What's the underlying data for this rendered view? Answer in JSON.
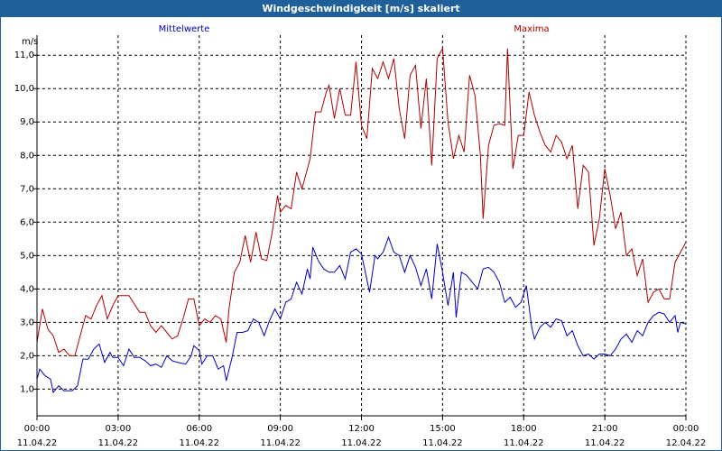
{
  "window": {
    "title": "Windgeschwindigkeit [m/s] skaliert"
  },
  "colors": {
    "title_bar": "#1f5f9a",
    "mean": "#0000c0",
    "max": "#b00000",
    "grid": "#000000"
  },
  "chart_data": {
    "type": "line",
    "title": "Windgeschwindigkeit [m/s] skaliert",
    "ylabel": "m/s",
    "xlabel": "",
    "ylim": [
      0.2,
      11.6
    ],
    "yticks": [
      {
        "v": 1.0,
        "label": "1,0"
      },
      {
        "v": 2.0,
        "label": "2,0"
      },
      {
        "v": 3.0,
        "label": "3,0"
      },
      {
        "v": 4.0,
        "label": "4,0"
      },
      {
        "v": 5.0,
        "label": "5,0"
      },
      {
        "v": 6.0,
        "label": "6,0"
      },
      {
        "v": 7.0,
        "label": "7,0"
      },
      {
        "v": 8.0,
        "label": "8,0"
      },
      {
        "v": 9.0,
        "label": "9,0"
      },
      {
        "v": 10.0,
        "label": "10,0"
      },
      {
        "v": 11.0,
        "label": "11,0"
      }
    ],
    "xlim": [
      0,
      24
    ],
    "xticks": [
      {
        "h": 0,
        "time": "00:00",
        "date": "11.04.22"
      },
      {
        "h": 3,
        "time": "03:00",
        "date": "11.04.22"
      },
      {
        "h": 6,
        "time": "06:00",
        "date": "11.04.22"
      },
      {
        "h": 9,
        "time": "09:00",
        "date": "11.04.22"
      },
      {
        "h": 12,
        "time": "12:00",
        "date": "11.04.22"
      },
      {
        "h": 15,
        "time": "15:00",
        "date": "11.04.22"
      },
      {
        "h": 18,
        "time": "18:00",
        "date": "11.04.22"
      },
      {
        "h": 21,
        "time": "21:00",
        "date": "11.04.22"
      },
      {
        "h": 24,
        "time": "00:00",
        "date": "12.04.22"
      }
    ],
    "grid": true,
    "legend": "top",
    "series": [
      {
        "name": "Mittelwerte",
        "color": "#0000c0",
        "points": [
          [
            0,
            1.3
          ],
          [
            0.1,
            1.6
          ],
          [
            0.3,
            1.4
          ],
          [
            0.5,
            1.3
          ],
          [
            0.6,
            0.9
          ],
          [
            0.8,
            1.1
          ],
          [
            1.0,
            0.95
          ],
          [
            1.3,
            0.95
          ],
          [
            1.5,
            1.1
          ],
          [
            1.7,
            1.9
          ],
          [
            1.9,
            1.9
          ],
          [
            2.1,
            2.2
          ],
          [
            2.3,
            2.35
          ],
          [
            2.5,
            1.8
          ],
          [
            2.7,
            2.1
          ],
          [
            2.8,
            1.95
          ],
          [
            3.0,
            1.95
          ],
          [
            3.2,
            1.7
          ],
          [
            3.4,
            2.2
          ],
          [
            3.6,
            1.95
          ],
          [
            3.8,
            1.95
          ],
          [
            4.0,
            1.85
          ],
          [
            4.2,
            1.7
          ],
          [
            4.4,
            1.75
          ],
          [
            4.6,
            1.65
          ],
          [
            4.8,
            2.0
          ],
          [
            5.0,
            1.85
          ],
          [
            5.2,
            1.8
          ],
          [
            5.5,
            1.75
          ],
          [
            5.7,
            2.0
          ],
          [
            5.8,
            2.3
          ],
          [
            6.0,
            2.15
          ],
          [
            6.1,
            1.75
          ],
          [
            6.3,
            2.0
          ],
          [
            6.5,
            2.0
          ],
          [
            6.7,
            1.6
          ],
          [
            6.9,
            1.7
          ],
          [
            7.0,
            1.25
          ],
          [
            7.2,
            1.9
          ],
          [
            7.4,
            2.7
          ],
          [
            7.6,
            2.7
          ],
          [
            7.8,
            2.75
          ],
          [
            8.0,
            3.1
          ],
          [
            8.2,
            3.0
          ],
          [
            8.4,
            2.6
          ],
          [
            8.6,
            3.05
          ],
          [
            8.8,
            3.4
          ],
          [
            9.0,
            3.1
          ],
          [
            9.2,
            3.6
          ],
          [
            9.4,
            3.7
          ],
          [
            9.6,
            4.2
          ],
          [
            9.8,
            3.85
          ],
          [
            10.0,
            4.6
          ],
          [
            10.1,
            4.3
          ],
          [
            10.2,
            5.25
          ],
          [
            10.4,
            4.85
          ],
          [
            10.6,
            4.6
          ],
          [
            10.8,
            4.5
          ],
          [
            11.0,
            4.5
          ],
          [
            11.2,
            4.7
          ],
          [
            11.4,
            4.3
          ],
          [
            11.6,
            5.1
          ],
          [
            11.8,
            5.2
          ],
          [
            12.0,
            5.05
          ],
          [
            12.3,
            3.9
          ],
          [
            12.5,
            5.0
          ],
          [
            12.6,
            4.9
          ],
          [
            12.8,
            5.1
          ],
          [
            13.0,
            5.55
          ],
          [
            13.2,
            5.1
          ],
          [
            13.4,
            5.0
          ],
          [
            13.6,
            4.5
          ],
          [
            13.8,
            5.0
          ],
          [
            14.0,
            4.65
          ],
          [
            14.2,
            4.1
          ],
          [
            14.4,
            4.6
          ],
          [
            14.6,
            3.7
          ],
          [
            14.8,
            5.35
          ],
          [
            15.0,
            4.5
          ],
          [
            15.2,
            3.5
          ],
          [
            15.4,
            4.5
          ],
          [
            15.5,
            3.15
          ],
          [
            15.7,
            4.5
          ],
          [
            15.9,
            4.4
          ],
          [
            16.1,
            4.2
          ],
          [
            16.3,
            4.0
          ],
          [
            16.5,
            4.6
          ],
          [
            16.7,
            4.65
          ],
          [
            16.9,
            4.5
          ],
          [
            17.1,
            4.2
          ],
          [
            17.3,
            3.6
          ],
          [
            17.5,
            3.75
          ],
          [
            17.7,
            3.45
          ],
          [
            17.9,
            3.6
          ],
          [
            18.1,
            4.1
          ],
          [
            18.3,
            2.85
          ],
          [
            18.4,
            2.5
          ],
          [
            18.6,
            2.85
          ],
          [
            18.8,
            3.0
          ],
          [
            19.0,
            2.85
          ],
          [
            19.2,
            3.1
          ],
          [
            19.4,
            3.05
          ],
          [
            19.6,
            2.6
          ],
          [
            19.8,
            2.75
          ],
          [
            20.0,
            2.3
          ],
          [
            20.2,
            2.0
          ],
          [
            20.4,
            2.05
          ],
          [
            20.6,
            1.9
          ],
          [
            20.8,
            2.05
          ],
          [
            21.0,
            2.05
          ],
          [
            21.2,
            2.0
          ],
          [
            21.4,
            2.2
          ],
          [
            21.6,
            2.5
          ],
          [
            21.8,
            2.65
          ],
          [
            22.0,
            2.4
          ],
          [
            22.2,
            2.75
          ],
          [
            22.4,
            2.6
          ],
          [
            22.6,
            3.0
          ],
          [
            22.8,
            3.2
          ],
          [
            23.0,
            3.3
          ],
          [
            23.2,
            3.25
          ],
          [
            23.4,
            3.0
          ],
          [
            23.6,
            3.2
          ],
          [
            23.7,
            2.7
          ],
          [
            23.8,
            3.0
          ],
          [
            24.0,
            2.95
          ]
        ]
      },
      {
        "name": "Maxima",
        "color": "#b00000",
        "points": [
          [
            0,
            2.4
          ],
          [
            0.2,
            3.4
          ],
          [
            0.4,
            2.8
          ],
          [
            0.6,
            2.6
          ],
          [
            0.8,
            2.1
          ],
          [
            1.0,
            2.2
          ],
          [
            1.2,
            2.0
          ],
          [
            1.4,
            2.0
          ],
          [
            1.6,
            2.6
          ],
          [
            1.8,
            3.2
          ],
          [
            2.0,
            3.1
          ],
          [
            2.2,
            3.5
          ],
          [
            2.4,
            3.8
          ],
          [
            2.6,
            3.1
          ],
          [
            2.8,
            3.5
          ],
          [
            3.0,
            3.8
          ],
          [
            3.2,
            3.8
          ],
          [
            3.4,
            3.8
          ],
          [
            3.6,
            3.55
          ],
          [
            3.8,
            3.3
          ],
          [
            4.0,
            3.3
          ],
          [
            4.2,
            2.9
          ],
          [
            4.4,
            2.7
          ],
          [
            4.6,
            2.9
          ],
          [
            4.8,
            2.7
          ],
          [
            5.0,
            2.5
          ],
          [
            5.2,
            2.6
          ],
          [
            5.4,
            3.1
          ],
          [
            5.6,
            3.7
          ],
          [
            5.8,
            3.7
          ],
          [
            6.0,
            2.9
          ],
          [
            6.2,
            3.1
          ],
          [
            6.4,
            3.0
          ],
          [
            6.6,
            3.2
          ],
          [
            6.8,
            3.1
          ],
          [
            7.0,
            2.4
          ],
          [
            7.1,
            3.4
          ],
          [
            7.3,
            4.5
          ],
          [
            7.5,
            4.8
          ],
          [
            7.7,
            5.6
          ],
          [
            7.9,
            4.8
          ],
          [
            8.1,
            5.7
          ],
          [
            8.3,
            4.9
          ],
          [
            8.5,
            4.85
          ],
          [
            8.7,
            5.7
          ],
          [
            8.9,
            6.8
          ],
          [
            9.0,
            6.3
          ],
          [
            9.2,
            6.5
          ],
          [
            9.4,
            6.4
          ],
          [
            9.6,
            7.5
          ],
          [
            9.8,
            7.0
          ],
          [
            10.0,
            7.6
          ],
          [
            10.1,
            7.9
          ],
          [
            10.3,
            9.3
          ],
          [
            10.5,
            9.3
          ],
          [
            10.7,
            9.9
          ],
          [
            10.8,
            10.1
          ],
          [
            11.0,
            9.1
          ],
          [
            11.2,
            10.0
          ],
          [
            11.4,
            9.2
          ],
          [
            11.6,
            9.2
          ],
          [
            11.8,
            10.8
          ],
          [
            12.0,
            8.9
          ],
          [
            12.2,
            8.5
          ],
          [
            12.4,
            10.6
          ],
          [
            12.6,
            10.3
          ],
          [
            12.8,
            10.8
          ],
          [
            13.0,
            10.3
          ],
          [
            13.2,
            10.9
          ],
          [
            13.4,
            9.4
          ],
          [
            13.6,
            8.5
          ],
          [
            13.8,
            10.4
          ],
          [
            14.0,
            10.7
          ],
          [
            14.2,
            8.8
          ],
          [
            14.4,
            10.3
          ],
          [
            14.6,
            7.7
          ],
          [
            14.8,
            10.9
          ],
          [
            15.0,
            11.2
          ],
          [
            15.2,
            9.0
          ],
          [
            15.4,
            7.9
          ],
          [
            15.6,
            8.6
          ],
          [
            15.8,
            8.1
          ],
          [
            16.0,
            10.4
          ],
          [
            16.2,
            9.8
          ],
          [
            16.4,
            8.0
          ],
          [
            16.5,
            6.1
          ],
          [
            16.7,
            8.3
          ],
          [
            16.9,
            8.9
          ],
          [
            17.1,
            8.95
          ],
          [
            17.3,
            8.9
          ],
          [
            17.4,
            11.2
          ],
          [
            17.6,
            7.6
          ],
          [
            17.8,
            8.6
          ],
          [
            18.0,
            8.6
          ],
          [
            18.2,
            9.9
          ],
          [
            18.4,
            9.2
          ],
          [
            18.6,
            8.7
          ],
          [
            18.8,
            8.3
          ],
          [
            19.0,
            8.1
          ],
          [
            19.2,
            8.6
          ],
          [
            19.4,
            8.4
          ],
          [
            19.6,
            7.9
          ],
          [
            19.8,
            8.3
          ],
          [
            20.0,
            6.4
          ],
          [
            20.2,
            7.7
          ],
          [
            20.4,
            7.5
          ],
          [
            20.6,
            5.3
          ],
          [
            20.8,
            6.1
          ],
          [
            21.0,
            7.6
          ],
          [
            21.2,
            6.8
          ],
          [
            21.4,
            5.8
          ],
          [
            21.6,
            6.3
          ],
          [
            21.8,
            5.0
          ],
          [
            22.0,
            5.2
          ],
          [
            22.2,
            4.4
          ],
          [
            22.4,
            4.9
          ],
          [
            22.6,
            3.6
          ],
          [
            22.8,
            3.9
          ],
          [
            23.0,
            4.0
          ],
          [
            23.2,
            3.7
          ],
          [
            23.4,
            3.7
          ],
          [
            23.6,
            4.8
          ],
          [
            23.8,
            5.1
          ],
          [
            24.0,
            5.4
          ]
        ]
      }
    ]
  }
}
